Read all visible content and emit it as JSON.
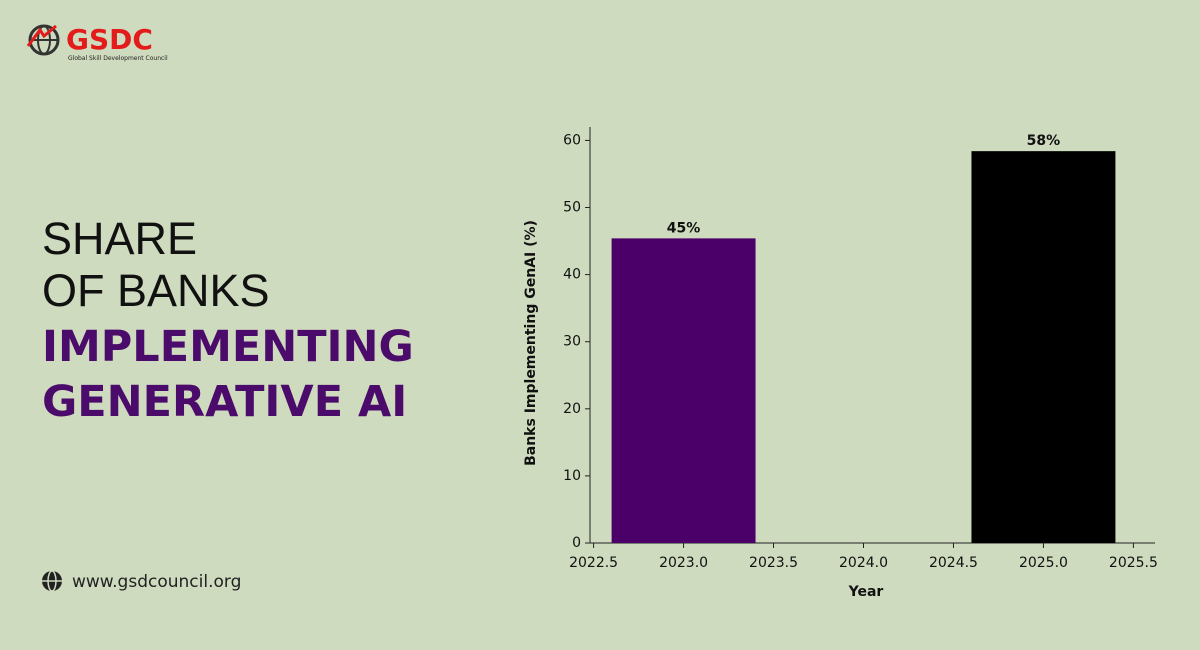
{
  "logo": {
    "name": "GSDC",
    "subtitle": "Global Skill Development Council"
  },
  "headline": [
    "SHARE",
    "OF BANKS",
    "IMPLEMENTING",
    "GENERATIVE AI"
  ],
  "footer": {
    "website": "www.gsdcouncil.org"
  },
  "chart_data": {
    "type": "bar",
    "x_label": "Year",
    "y_label": "Banks Implementing GenAI (%)",
    "x": [
      2023,
      2025
    ],
    "values": [
      45.4,
      58.4
    ],
    "value_labels": [
      "45%",
      "58%"
    ],
    "colors": [
      "#4b0069",
      "#000000"
    ],
    "xlim": [
      2022.48,
      2025.62
    ],
    "ylim": [
      0,
      62
    ],
    "xticks": [
      2022.5,
      {
        "value": 2023,
        "label": "2023.0"
      },
      2023.5,
      {
        "value": 2024,
        "label": "2024.0"
      },
      2024.5,
      {
        "value": 2025,
        "label": "2025.0"
      },
      2025.5
    ],
    "yticks": [
      0,
      10,
      20,
      30,
      40,
      50,
      60
    ],
    "grid": false
  }
}
